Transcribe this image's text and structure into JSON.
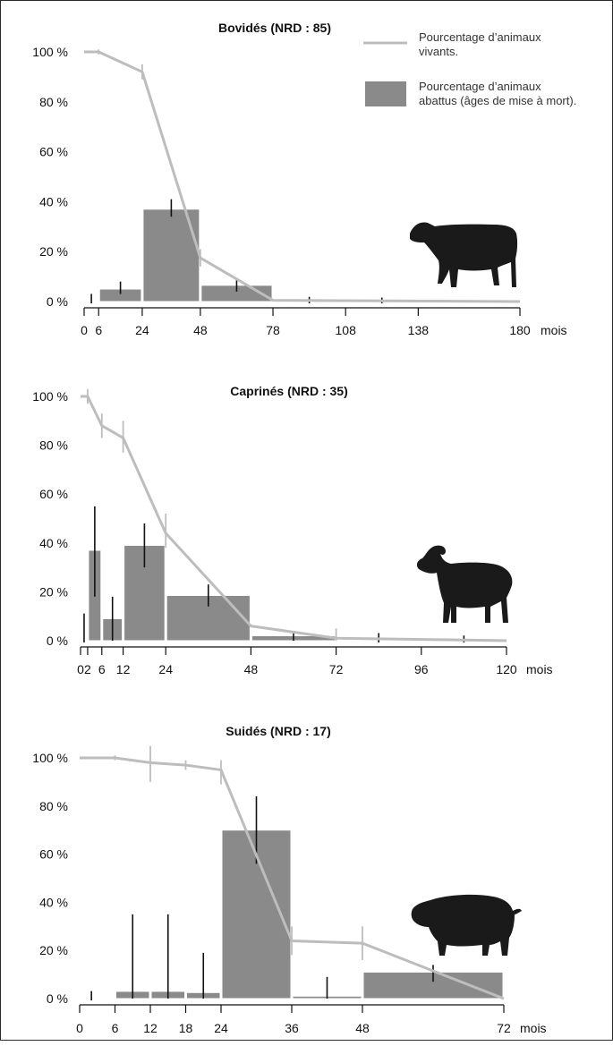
{
  "legend": {
    "line_label_1": "Pourcentage d’animaux",
    "line_label_2": "vivants.",
    "bar_label_1": "Pourcentage d’animaux",
    "bar_label_2": "abattus (âges de mise à mort).",
    "colors": {
      "line": "#bdbdbd",
      "bar": "#8a8a8a",
      "error": "#111111"
    }
  },
  "chart_data": [
    {
      "type": "bar",
      "title": "Bovidés (NRD : 85)",
      "xunit": "mois",
      "xticks": [
        0,
        6,
        24,
        48,
        78,
        108,
        138,
        180
      ],
      "x_range": [
        0,
        180
      ],
      "y_range": [
        0,
        100
      ],
      "yticks": [
        0,
        20,
        40,
        60,
        80,
        100
      ],
      "bars": [
        {
          "x0": 6,
          "x1": 24,
          "value": 5,
          "err": [
            3,
            8
          ]
        },
        {
          "x0": 24,
          "x1": 48,
          "value": 37,
          "err": [
            34,
            41
          ]
        },
        {
          "x0": 48,
          "x1": 78,
          "value": 6.5,
          "err": [
            4,
            9
          ]
        }
      ],
      "zero_marks": [
        {
          "x": 3,
          "lo": 0,
          "hi": 2
        },
        {
          "x": 93,
          "lo": 0,
          "hi": 0.8
        },
        {
          "x": 123,
          "lo": 0,
          "hi": 0.5
        }
      ],
      "survival": [
        [
          0,
          100
        ],
        [
          6,
          100
        ],
        [
          24,
          92
        ],
        [
          48,
          17.5
        ],
        [
          78,
          0.5
        ],
        [
          180,
          0
        ]
      ],
      "survival_err": [
        {
          "x": 6,
          "lo": 99,
          "hi": 101
        },
        {
          "x": 24,
          "lo": 89,
          "hi": 95
        },
        {
          "x": 48,
          "lo": 14,
          "hi": 21
        }
      ],
      "animal": "cow-silhouette"
    },
    {
      "type": "bar",
      "title": "Caprinés (NRD : 35)",
      "xunit": "mois",
      "xticks": [
        0,
        2,
        6,
        12,
        24,
        48,
        72,
        96,
        120
      ],
      "x_range": [
        0,
        120
      ],
      "y_range": [
        0,
        100
      ],
      "yticks": [
        0,
        20,
        40,
        60,
        80,
        100
      ],
      "bars": [
        {
          "x0": 2,
          "x1": 6,
          "value": 37,
          "err": [
            18,
            55
          ]
        },
        {
          "x0": 6,
          "x1": 12,
          "value": 9,
          "err": [
            0,
            18
          ]
        },
        {
          "x0": 12,
          "x1": 24,
          "value": 39,
          "err": [
            30,
            48
          ]
        },
        {
          "x0": 24,
          "x1": 48,
          "value": 18.5,
          "err": [
            14,
            23
          ]
        },
        {
          "x0": 48,
          "x1": 72,
          "value": 2,
          "err": [
            0,
            4
          ]
        }
      ],
      "zero_marks": [
        {
          "x": 1,
          "lo": 0,
          "hi": 10
        },
        {
          "x": 84,
          "lo": 0,
          "hi": 2
        },
        {
          "x": 108,
          "lo": 0,
          "hi": 1
        }
      ],
      "survival": [
        [
          0,
          100
        ],
        [
          2,
          100
        ],
        [
          6,
          88
        ],
        [
          12,
          83
        ],
        [
          24,
          44
        ],
        [
          48,
          6
        ],
        [
          72,
          1
        ],
        [
          120,
          0
        ]
      ],
      "survival_err": [
        {
          "x": 2,
          "lo": 97,
          "hi": 103
        },
        {
          "x": 6,
          "lo": 83,
          "hi": 93
        },
        {
          "x": 12,
          "lo": 77,
          "hi": 90
        },
        {
          "x": 24,
          "lo": 38,
          "hi": 52
        },
        {
          "x": 72,
          "lo": 0,
          "hi": 5
        }
      ],
      "animal": "goat-silhouette"
    },
    {
      "type": "bar",
      "title": "Suidés (NRD : 17)",
      "xunit": "mois",
      "xticks": [
        0,
        6,
        12,
        18,
        24,
        36,
        48,
        72
      ],
      "x_range": [
        0,
        72
      ],
      "y_range": [
        0,
        100
      ],
      "yticks": [
        0,
        20,
        40,
        60,
        80,
        100
      ],
      "bars": [
        {
          "x0": 6,
          "x1": 12,
          "value": 3,
          "err": [
            0,
            35
          ]
        },
        {
          "x0": 12,
          "x1": 18,
          "value": 3,
          "err": [
            0,
            35
          ]
        },
        {
          "x0": 18,
          "x1": 24,
          "value": 2.5,
          "err": [
            0,
            19
          ]
        },
        {
          "x0": 24,
          "x1": 36,
          "value": 70,
          "err": [
            56,
            84
          ]
        },
        {
          "x0": 36,
          "x1": 48,
          "value": 1,
          "err": [
            0,
            9
          ]
        },
        {
          "x0": 48,
          "x1": 72,
          "value": 11,
          "err": [
            7,
            14
          ]
        }
      ],
      "zero_marks": [
        {
          "x": 2,
          "lo": 0,
          "hi": 2
        }
      ],
      "survival": [
        [
          0,
          100
        ],
        [
          6,
          100
        ],
        [
          12,
          98
        ],
        [
          18,
          97
        ],
        [
          24,
          95
        ],
        [
          36,
          24
        ],
        [
          48,
          23
        ],
        [
          72,
          0
        ]
      ],
      "survival_err": [
        {
          "x": 6,
          "lo": 99,
          "hi": 101
        },
        {
          "x": 12,
          "lo": 90,
          "hi": 105
        },
        {
          "x": 18,
          "lo": 95,
          "hi": 99
        },
        {
          "x": 24,
          "lo": 89,
          "hi": 99
        },
        {
          "x": 36,
          "lo": 18,
          "hi": 30
        },
        {
          "x": 48,
          "lo": 16,
          "hi": 30
        }
      ],
      "animal": "pig-silhouette"
    }
  ]
}
